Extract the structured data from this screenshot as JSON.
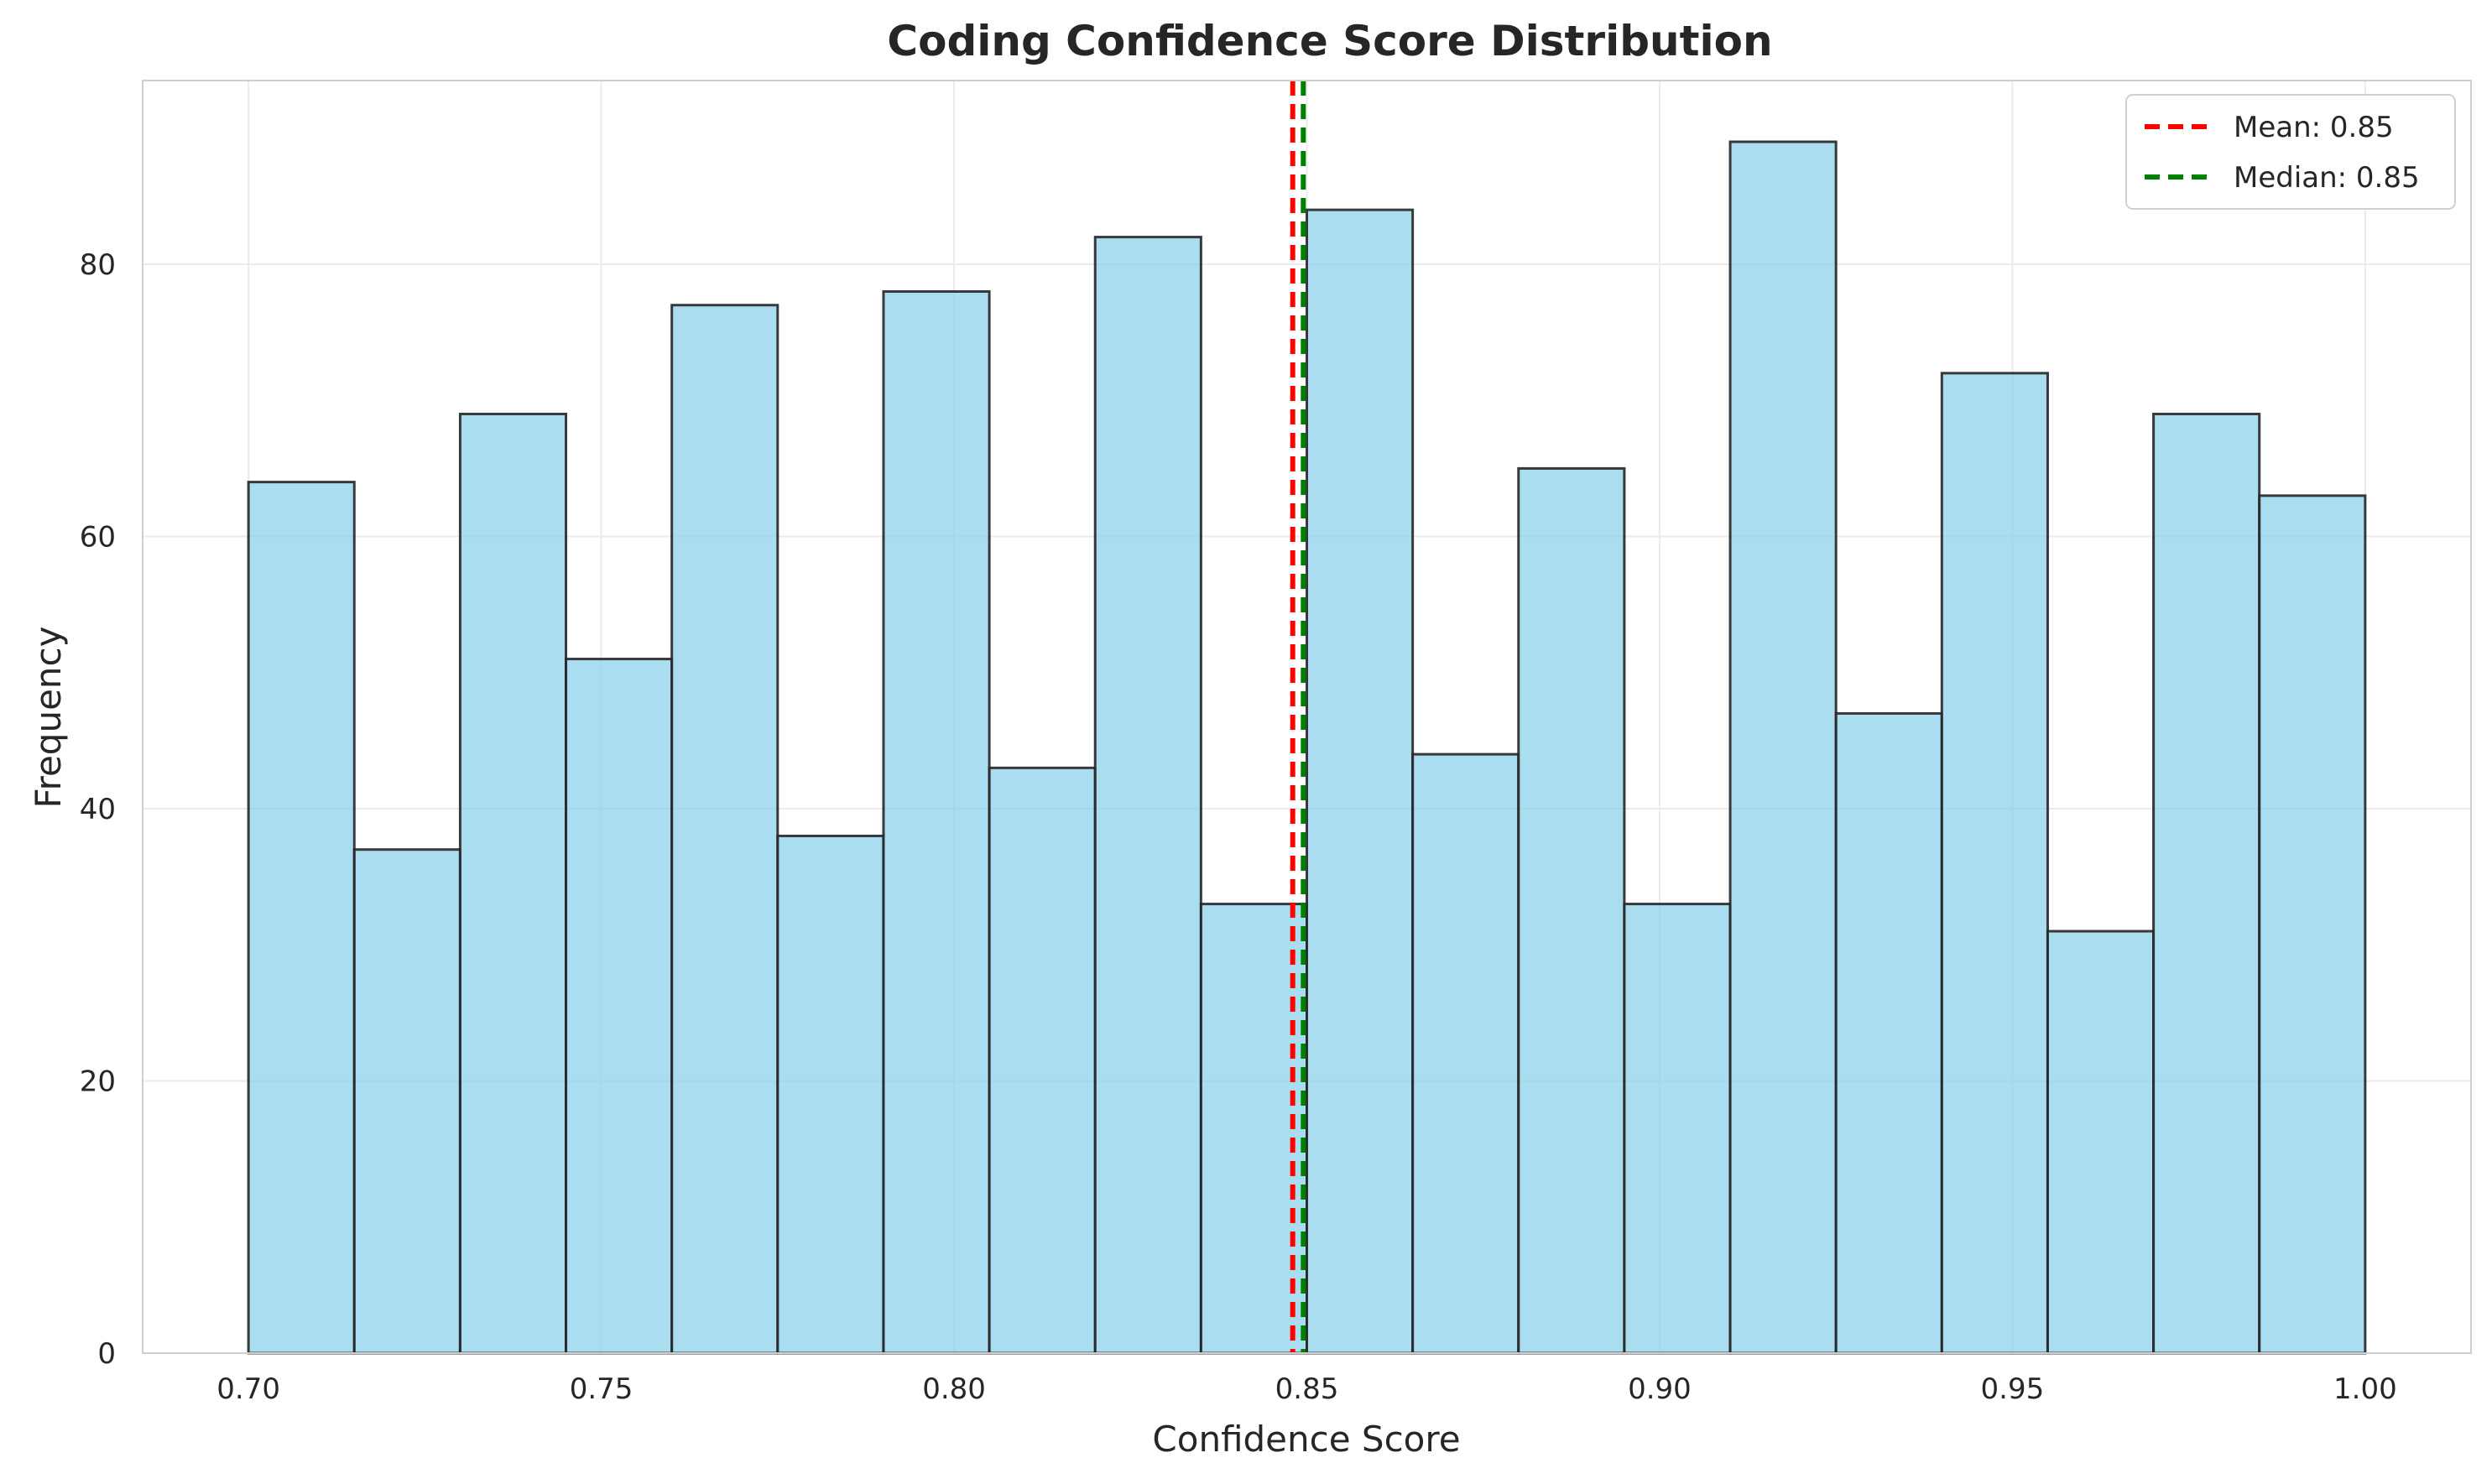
{
  "chart_data": {
    "type": "bar",
    "title": "Coding Confidence Score Distribution",
    "xlabel": "Confidence Score",
    "ylabel": "Frequency",
    "xlim": [
      0.685,
      1.015
    ],
    "ylim": [
      0,
      93.5
    ],
    "x_ticks": [
      0.7,
      0.75,
      0.8,
      0.85,
      0.9,
      0.95,
      1.0
    ],
    "x_tick_labels": [
      "0.70",
      "0.75",
      "0.80",
      "0.85",
      "0.90",
      "0.95",
      "1.00"
    ],
    "y_ticks": [
      0,
      20,
      40,
      60,
      80
    ],
    "y_tick_labels": [
      "0",
      "20",
      "40",
      "60",
      "80"
    ],
    "grid": true,
    "bin_start": 0.7,
    "bin_end": 1.0,
    "bin_count": 20,
    "values": [
      64,
      37,
      69,
      51,
      77,
      38,
      78,
      43,
      82,
      33,
      84,
      44,
      65,
      33,
      89,
      47,
      72,
      31,
      69,
      63
    ],
    "bar_color": "#87ceeb",
    "bar_edge_color": "#262626",
    "reference_lines": [
      {
        "label": "Mean: 0.85",
        "x": 0.848,
        "color": "#ff0000",
        "style": "dashed"
      },
      {
        "label": "Median: 0.85",
        "x": 0.8495,
        "color": "#008000",
        "style": "dashed"
      }
    ],
    "legend_position": "top-right"
  }
}
